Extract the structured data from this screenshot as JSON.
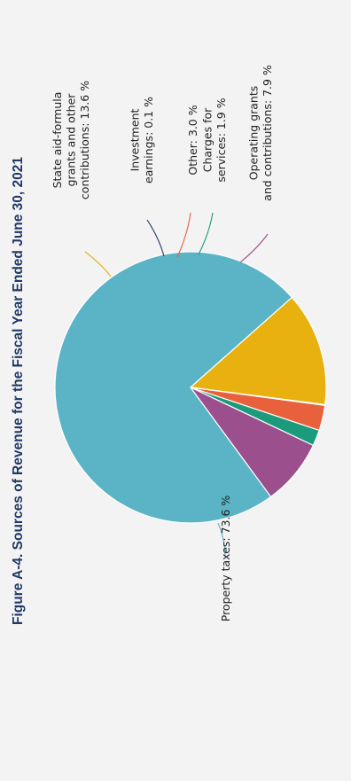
{
  "chart_data": {
    "type": "pie",
    "title": "Figure A-4. Sources of Revenue for the Fiscal Year Ended June 30, 2021",
    "unit": "%",
    "slices": [
      {
        "label": "Property taxes: 73.6 %",
        "lines": [
          "Property taxes: 73.6 %"
        ],
        "value": 73.6,
        "color": "#5ab4c5"
      },
      {
        "label": "State aid-formula grants and other contributions: 13.6 %",
        "lines": [
          "State aid-formula",
          "grants and other",
          "contributions: 13.6 %"
        ],
        "value": 13.6,
        "color": "#e8b10f"
      },
      {
        "label": "Investment earnings: 0.1 %",
        "lines": [
          "Investment",
          "earnings: 0.1 %"
        ],
        "value": 0.1,
        "color": "#1f3864"
      },
      {
        "label": "Other: 3.0 %",
        "lines": [
          "Other: 3.0 %"
        ],
        "value": 3.0,
        "color": "#e8603c"
      },
      {
        "label": "Charges for services: 1.9 %",
        "lines": [
          "Charges for",
          "services: 1.9 %"
        ],
        "value": 1.9,
        "color": "#1c9a7c"
      },
      {
        "label": "Operating grants and contributions: 7.9 %",
        "lines": [
          "Operating grants",
          "and contributions: 7.9 %"
        ],
        "value": 7.9,
        "color": "#9b4f8c"
      }
    ]
  }
}
